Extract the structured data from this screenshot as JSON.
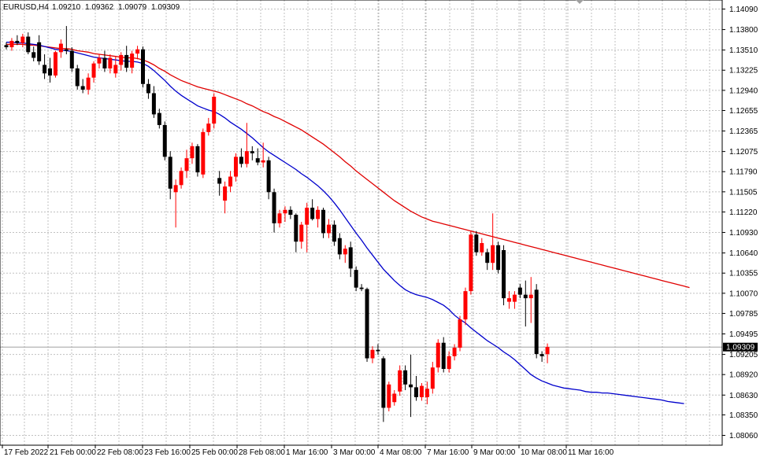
{
  "header": {
    "symbol": "EURUSD,H4",
    "open": "1.09210",
    "high": "1.09362",
    "low": "1.09079",
    "close": "1.09309"
  },
  "current_price_label": "1.09309",
  "colors": {
    "bull": "#ff0000",
    "bear": "#000000",
    "ma_fast": "#0000cc",
    "ma_slow": "#e00000",
    "grid": "#c0c0c0",
    "price_line": "#a0a0a0"
  },
  "chart_data": {
    "type": "candlestick",
    "instrument": "EURUSD",
    "timeframe": "H4",
    "grid": true,
    "ylim": [
      1.0794,
      1.1424
    ],
    "y_ticks": [
      "1.14090",
      "1.13800",
      "1.13510",
      "1.13225",
      "1.12940",
      "1.12655",
      "1.12365",
      "1.12075",
      "1.11790",
      "1.11505",
      "1.11220",
      "1.10930",
      "1.10640",
      "1.10355",
      "1.10070",
      "1.09785",
      "1.09495",
      "1.09205",
      "1.08920",
      "1.08630",
      "1.08350",
      "1.08060"
    ],
    "x_tick_labels": [
      "17 Feb 2022",
      "21 Feb 00:00",
      "22 Feb 08:00",
      "23 Feb 16:00",
      "25 Feb 00:00",
      "28 Feb 08:00",
      "1 Mar 16:00",
      "3 Mar 00:00",
      "4 Mar 08:00",
      "7 Mar 16:00",
      "9 Mar 00:00",
      "10 Mar 08:00",
      "11 Mar 16:00"
    ],
    "candles": [
      [
        1.1358,
        1.1362,
        1.1352,
        1.1355
      ],
      [
        1.1355,
        1.1368,
        1.135,
        1.1364
      ],
      [
        1.1364,
        1.1372,
        1.1358,
        1.1361
      ],
      [
        1.1361,
        1.1374,
        1.1355,
        1.137
      ],
      [
        1.137,
        1.1376,
        1.1345,
        1.1348
      ],
      [
        1.1348,
        1.1356,
        1.1335,
        1.134
      ],
      [
        1.1362,
        1.1372,
        1.133,
        1.1335
      ],
      [
        1.133,
        1.1345,
        1.131,
        1.1318
      ],
      [
        1.1325,
        1.134,
        1.1305,
        1.1315
      ],
      [
        1.1315,
        1.135,
        1.1312,
        1.1348
      ],
      [
        1.1348,
        1.1366,
        1.134,
        1.136
      ],
      [
        1.1352,
        1.1385,
        1.1345,
        1.135
      ],
      [
        1.135,
        1.1355,
        1.132,
        1.1325
      ],
      [
        1.1325,
        1.133,
        1.1295,
        1.13
      ],
      [
        1.13,
        1.131,
        1.129,
        1.1295
      ],
      [
        1.1295,
        1.1318,
        1.1288,
        1.1312
      ],
      [
        1.1312,
        1.1335,
        1.1305,
        1.1332
      ],
      [
        1.1332,
        1.1345,
        1.1325,
        1.134
      ],
      [
        1.134,
        1.135,
        1.132,
        1.1325
      ],
      [
        1.1325,
        1.1345,
        1.1318,
        1.134
      ],
      [
        1.1318,
        1.1342,
        1.1312,
        1.133
      ],
      [
        1.133,
        1.1348,
        1.1322,
        1.1344
      ],
      [
        1.1344,
        1.1357,
        1.132,
        1.1326
      ],
      [
        1.1326,
        1.135,
        1.1318,
        1.1346
      ],
      [
        1.1346,
        1.1357,
        1.1338,
        1.1352
      ],
      [
        1.1352,
        1.1356,
        1.1298,
        1.1303
      ],
      [
        1.1303,
        1.131,
        1.1282,
        1.129
      ],
      [
        1.129,
        1.13,
        1.1255,
        1.126
      ],
      [
        1.1262,
        1.1268,
        1.124,
        1.1245
      ],
      [
        1.1245,
        1.125,
        1.1195,
        1.12
      ],
      [
        1.12,
        1.1208,
        1.114,
        1.1155
      ],
      [
        1.115,
        1.1168,
        1.11,
        1.116
      ],
      [
        1.116,
        1.1185,
        1.1155,
        1.118
      ],
      [
        1.118,
        1.121,
        1.117,
        1.1198
      ],
      [
        1.1198,
        1.122,
        1.119,
        1.1215
      ],
      [
        1.1215,
        1.1218,
        1.1172,
        1.1178
      ],
      [
        1.1175,
        1.124,
        1.117,
        1.1235
      ],
      [
        1.1235,
        1.1255,
        1.123,
        1.1247
      ],
      [
        1.1247,
        1.129,
        1.124,
        1.1285
      ],
      [
        1.117,
        1.118,
        1.1145,
        1.1162
      ],
      [
        1.1138,
        1.1165,
        1.112,
        1.1158
      ],
      [
        1.1158,
        1.118,
        1.115,
        1.1172
      ],
      [
        1.1172,
        1.1205,
        1.1165,
        1.12
      ],
      [
        1.12,
        1.1212,
        1.1185,
        1.119
      ],
      [
        1.119,
        1.1248,
        1.1185,
        1.1208
      ],
      [
        1.1208,
        1.1215,
        1.1195,
        1.1205
      ],
      [
        1.1198,
        1.1212,
        1.1188,
        1.1192
      ],
      [
        1.1192,
        1.122,
        1.1185,
        1.1195
      ],
      [
        1.1195,
        1.12,
        1.114,
        1.115
      ],
      [
        1.115,
        1.1155,
        1.1093,
        1.1106
      ],
      [
        1.1106,
        1.1125,
        1.11,
        1.112
      ],
      [
        1.112,
        1.113,
        1.1108,
        1.1125
      ],
      [
        1.1125,
        1.113,
        1.1112,
        1.1118
      ],
      [
        1.1118,
        1.112,
        1.1065,
        1.108
      ],
      [
        1.108,
        1.1108,
        1.107,
        1.1104
      ],
      [
        1.1104,
        1.1135,
        1.1065,
        1.1128
      ],
      [
        1.1128,
        1.114,
        1.111,
        1.1112
      ],
      [
        1.1112,
        1.113,
        1.11,
        1.1125
      ],
      [
        1.1125,
        1.1128,
        1.1085,
        1.1092
      ],
      [
        1.1092,
        1.1112,
        1.1085,
        1.1104
      ],
      [
        1.1104,
        1.111,
        1.1074,
        1.108
      ],
      [
        1.1085,
        1.1092,
        1.1055,
        1.1062
      ],
      [
        1.1062,
        1.1075,
        1.105,
        1.107
      ],
      [
        1.1072,
        1.108,
        1.103,
        1.1042
      ],
      [
        1.104,
        1.1045,
        1.101,
        1.1015
      ],
      [
        1.1015,
        1.102,
        1.101,
        1.1013
      ],
      [
        1.1013,
        1.1015,
        1.091,
        1.0915
      ],
      [
        1.0915,
        1.0932,
        1.0908,
        1.0927
      ],
      [
        1.0927,
        1.0935,
        1.092,
        1.0925
      ],
      [
        1.0915,
        1.0918,
        1.0825,
        1.0845
      ],
      [
        1.0845,
        1.0882,
        1.084,
        1.0878
      ],
      [
        1.0853,
        1.087,
        1.0848,
        1.0865
      ],
      [
        1.0868,
        1.0905,
        1.0862,
        1.0898
      ],
      [
        1.0898,
        1.0905,
        1.087,
        1.0878
      ],
      [
        1.0878,
        1.092,
        1.0832,
        1.0874
      ],
      [
        1.0874,
        1.089,
        1.0855,
        1.086
      ],
      [
        1.086,
        1.088,
        1.0855,
        1.0876
      ],
      [
        1.086,
        1.0882,
        1.085,
        1.0872
      ],
      [
        1.0872,
        1.091,
        1.0865,
        1.0902
      ],
      [
        1.0902,
        1.0942,
        1.0895,
        1.0937
      ],
      [
        1.0937,
        1.0945,
        1.0895,
        1.09
      ],
      [
        1.09,
        1.0925,
        1.0895,
        1.0918
      ],
      [
        1.0918,
        1.0935,
        1.0912,
        1.093
      ],
      [
        1.093,
        1.0975,
        1.0925,
        1.097
      ],
      [
        1.097,
        1.1015,
        1.0962,
        1.101
      ],
      [
        1.101,
        1.1095,
        1.1005,
        1.109
      ],
      [
        1.109,
        1.1095,
        1.106,
        1.1065
      ],
      [
        1.1065,
        1.1085,
        1.106,
        1.1078
      ],
      [
        1.1065,
        1.107,
        1.104,
        1.105
      ],
      [
        1.105,
        1.112,
        1.104,
        1.1075
      ],
      [
        1.1075,
        1.108,
        1.1035,
        1.104
      ],
      [
        1.1068,
        1.1075,
        1.099,
        1.1
      ],
      [
        1.0995,
        1.101,
        1.0985,
        1.1
      ],
      [
        1.0995,
        1.101,
        1.0985,
        1.1005
      ],
      [
        1.1015,
        1.102,
        1.1,
        1.1005
      ],
      [
        1.1005,
        1.1025,
        1.096,
        1.1
      ],
      [
        1.1,
        1.103,
        1.0965,
        1.1005
      ],
      [
        1.1012,
        1.102,
        1.0915,
        1.0921
      ],
      [
        1.0921,
        1.0925,
        1.091,
        1.0918
      ],
      [
        1.0921,
        1.0936,
        1.0908,
        1.0931
      ]
    ],
    "ma_fast": [
      1.1362,
      1.1362,
      1.1361,
      1.1361,
      1.136,
      1.1359,
      1.1358,
      1.1356,
      1.1354,
      1.1352,
      1.1351,
      1.135,
      1.1349,
      1.1347,
      1.1345,
      1.1343,
      1.1341,
      1.134,
      1.1339,
      1.1338,
      1.1337,
      1.1336,
      1.1335,
      1.1335,
      1.1334,
      1.1332,
      1.1328,
      1.1322,
      1.1315,
      1.1308,
      1.13,
      1.1293,
      1.1287,
      1.1282,
      1.1277,
      1.1272,
      1.1269,
      1.1266,
      1.1264,
      1.126,
      1.1255,
      1.1249,
      1.1244,
      1.1239,
      1.1233,
      1.1227,
      1.122,
      1.1213,
      1.1207,
      1.1202,
      1.1197,
      1.1192,
      1.1187,
      1.1182,
      1.1176,
      1.1171,
      1.1165,
      1.1159,
      1.1152,
      1.1144,
      1.1135,
      1.1125,
      1.1114,
      1.1103,
      1.1092,
      1.1082,
      1.1071,
      1.1061,
      1.1051,
      1.1041,
      1.1033,
      1.1025,
      1.1018,
      1.1012,
      1.1008,
      1.1005,
      1.1003,
      1.1001,
      1.0998,
      1.0994,
      1.099,
      1.0984,
      1.0976,
      1.097,
      1.0965,
      1.0958,
      1.0952,
      1.0946,
      1.094,
      1.0935,
      1.093,
      1.0924,
      1.0919,
      1.0913,
      1.0906,
      1.0899,
      1.0892,
      1.0887,
      1.0883,
      1.088,
      1.0877,
      1.0875,
      1.0873,
      1.0872,
      1.0871,
      1.087,
      1.0868,
      1.0867,
      1.0867,
      1.0866,
      1.0866,
      1.0865,
      1.0864,
      1.0863,
      1.0862,
      1.0861,
      1.086,
      1.0859,
      1.0858,
      1.0857,
      1.0856,
      1.0854,
      1.0853,
      1.0852,
      1.0851
    ],
    "ma_slow": [
      1.1359,
      1.1359,
      1.1359,
      1.1359,
      1.1358,
      1.1358,
      1.1357,
      1.1356,
      1.1355,
      1.1354,
      1.1353,
      1.1353,
      1.1352,
      1.135,
      1.1349,
      1.1348,
      1.1346,
      1.1345,
      1.1344,
      1.1343,
      1.1342,
      1.1341,
      1.134,
      1.134,
      1.1339,
      1.1337,
      1.1334,
      1.133,
      1.1325,
      1.1321,
      1.1316,
      1.1312,
      1.1308,
      1.1305,
      1.1302,
      1.1299,
      1.1297,
      1.1295,
      1.1293,
      1.1291,
      1.1288,
      1.1285,
      1.1282,
      1.1279,
      1.1275,
      1.1272,
      1.1268,
      1.1264,
      1.1261,
      1.1257,
      1.1254,
      1.125,
      1.1246,
      1.1242,
      1.1238,
      1.1233,
      1.1228,
      1.1223,
      1.1218,
      1.1212,
      1.1206,
      1.12,
      1.1193,
      1.1187,
      1.118,
      1.1174,
      1.1168,
      1.1162,
      1.1156,
      1.115,
      1.1144,
      1.1138,
      1.1133,
      1.1128,
      1.1123,
      1.1119,
      1.1115,
      1.1112,
      1.1109,
      1.1107,
      1.1105,
      1.1103,
      1.1101,
      1.1099,
      1.1097,
      1.1095,
      1.1093,
      1.1091,
      1.1089,
      1.1087,
      1.1085,
      1.1083,
      1.1081,
      1.1079,
      1.1077,
      1.1075,
      1.1073,
      1.1071,
      1.1069,
      1.1067,
      1.1065,
      1.1063,
      1.1061,
      1.1059,
      1.1057,
      1.1055,
      1.1053,
      1.1051,
      1.1049,
      1.1047,
      1.1045,
      1.1043,
      1.1041,
      1.1039,
      1.1037,
      1.1035,
      1.1033,
      1.1031,
      1.1029,
      1.1027,
      1.1025,
      1.1023,
      1.1021,
      1.1019,
      1.1017,
      1.1015
    ]
  }
}
